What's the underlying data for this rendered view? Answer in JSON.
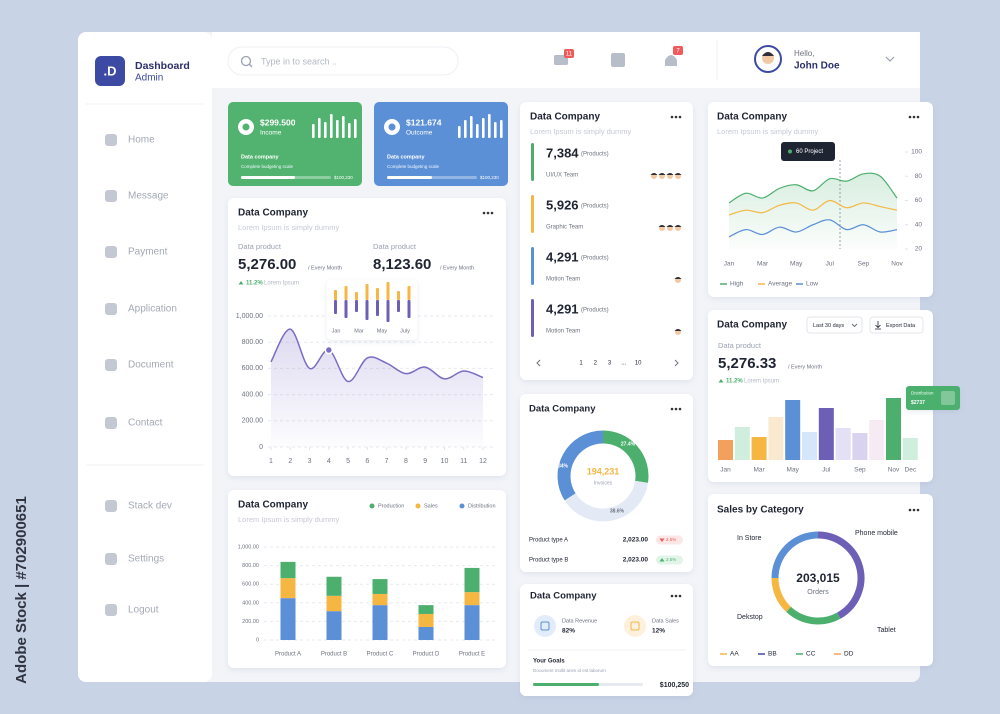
{
  "watermark": "Adobe Stock | #702900651",
  "sidebar": {
    "logo": ".D",
    "title": "Dashboard",
    "subtitle": "Admin",
    "nav": [
      "Home",
      "Message",
      "Payment",
      "Application",
      "Document",
      "Contact",
      "Stack dev",
      "Settings",
      "Logout"
    ]
  },
  "topbar": {
    "search": "Type in to search ..",
    "mail_badge": "11",
    "bell_badge": "7",
    "greeting": "Hello,",
    "user": "John Doe"
  },
  "summary_cards": [
    {
      "amount": "$299.500",
      "label": "Income",
      "name": "Data company",
      "note": "Complete budgeting scale",
      "total": "$100,230",
      "color": "#52b370",
      "spark": [
        14,
        20,
        16,
        24,
        18,
        22,
        15,
        19
      ],
      "progress": 60
    },
    {
      "amount": "$121.674",
      "label": "Outcome",
      "name": "Data company",
      "note": "Complete budgeting scale",
      "total": "$100,230",
      "color": "#5b8fd6",
      "spark": [
        12,
        18,
        22,
        14,
        20,
        24,
        16,
        18
      ],
      "progress": 50
    }
  ],
  "product_chart": {
    "title": "Data Company",
    "subtitle": "Lorem Ipsum is simply dummy",
    "kpis": [
      {
        "label": "Data product",
        "value": "5,276.00",
        "unit": "/ Every Month"
      },
      {
        "label": "Data product",
        "value": "8,123.60",
        "unit": "/ Every Month"
      }
    ],
    "change": "11.2%",
    "change_note": "Lorem Ipsum",
    "inset": {
      "months": [
        "Jan",
        "Mar",
        "May",
        "July"
      ],
      "up": [
        10,
        14,
        8,
        16,
        12,
        18,
        9,
        14
      ],
      "down": [
        14,
        18,
        12,
        20,
        16,
        22,
        12,
        18
      ]
    },
    "chart": {
      "type": "line",
      "x": [
        1,
        2,
        3,
        4,
        5,
        6,
        7,
        8,
        9,
        10,
        11,
        12
      ],
      "values": [
        650,
        900,
        600,
        740,
        500,
        680,
        640,
        560,
        610,
        520,
        580,
        530
      ],
      "xlim": [
        1,
        12
      ],
      "ylim": [
        0,
        1000
      ],
      "xticks": [
        1,
        2,
        3,
        4,
        5,
        6,
        7,
        8,
        9,
        10,
        11,
        12
      ],
      "yticks": [
        0,
        {
          "value": 200,
          "label": "200.00"
        },
        {
          "value": 400,
          "label": "400.00"
        },
        {
          "value": 600,
          "label": "600.00"
        },
        {
          "value": 800,
          "label": "800.00"
        },
        {
          "value": 1000,
          "label": "1,000.00"
        }
      ],
      "marker_index": 3,
      "color": "#7b6cc4",
      "grid": true
    }
  },
  "stack_chart": {
    "type": "bar",
    "stacked": true,
    "title": "Data Company",
    "subtitle": "Lorem Ipsum is simply dummy",
    "categories": [
      "Product A",
      "Product B",
      "Product C",
      "Product D",
      "Product E"
    ],
    "series": [
      {
        "name": "Production",
        "color": "#4caf6e",
        "values": [
          175,
          205,
          160,
          95,
          260
        ]
      },
      {
        "name": "Sales",
        "color": "#f5b642",
        "values": [
          215,
          165,
          120,
          140,
          140
        ]
      },
      {
        "name": "Distribution",
        "color": "#5b8fd6",
        "values": [
          450,
          310,
          375,
          140,
          375
        ]
      }
    ],
    "ylim": [
      0,
      1000
    ],
    "yticks": [
      0,
      {
        "value": 200,
        "label": "200.00"
      },
      {
        "value": 400,
        "label": "400.00"
      },
      {
        "value": 600,
        "label": "600.00"
      },
      {
        "value": 800,
        "label": "800.00"
      },
      {
        "value": 1000,
        "label": "1,000.00"
      }
    ],
    "grid": true
  },
  "teams": {
    "title": "Data Company",
    "subtitle": "Lorem Ipsum is simply dummy",
    "items": [
      {
        "value": "7,384",
        "unit": "(Products)",
        "team": "UI/UX Team",
        "color": "#4caf6e"
      },
      {
        "value": "5,926",
        "unit": "(Products)",
        "team": "Graphic Team",
        "color": "#f5b642"
      },
      {
        "value": "4,291",
        "unit": "(Products)",
        "team": "Motion Team",
        "color": "#5b8fd6"
      },
      {
        "value": "4,291",
        "unit": "(Products)",
        "team": "Motion Team",
        "color": "#6c5fb5"
      }
    ],
    "pages": [
      "1",
      "2",
      "3",
      "...",
      "10"
    ]
  },
  "invoices": {
    "type": "pie",
    "title": "Data Company",
    "total": "194,231",
    "total_label": "Invoices",
    "values": [
      27.4,
      38.6,
      34
    ],
    "value_labels": [
      "27.4%",
      "38.6%",
      "34%"
    ],
    "colors": [
      "#4caf6e",
      "#e3eaf5",
      "#5b8fd6"
    ],
    "rows": [
      {
        "name": "Product type A",
        "amount": "2,023.00",
        "change": "2.5%",
        "direction": "down"
      },
      {
        "name": "Product type B",
        "amount": "2,023.00",
        "change": "2.5%",
        "direction": "up"
      }
    ]
  },
  "goals": {
    "title": "Data Company",
    "metrics": [
      {
        "label": "Data Revenue",
        "value": "82%"
      },
      {
        "label": "Data Sales",
        "value": "12%"
      }
    ],
    "goal_title": "Your Goals",
    "goal_text": "Document mollit anim id est laborum",
    "amount": "$100,250",
    "progress": 60
  },
  "projects": {
    "type": "line",
    "title": "Data Company",
    "subtitle": "Lorem Ipsum is simply dummy",
    "tooltip": "60 Project",
    "categories": [
      "Jan",
      null,
      "Mar",
      null,
      "May",
      null,
      "Jul",
      null,
      "Sep",
      null,
      "Nov"
    ],
    "ylim": [
      20,
      100
    ],
    "yticks": [
      20,
      40,
      60,
      80,
      100
    ],
    "series": [
      {
        "name": "High",
        "color": "#4caf6e",
        "values": [
          58,
          66,
          62,
          70,
          73,
          68,
          78,
          76,
          82,
          80,
          62
        ]
      },
      {
        "name": "Average",
        "color": "#f5b642",
        "values": [
          48,
          52,
          50,
          56,
          58,
          52,
          60,
          54,
          58,
          55,
          52
        ]
      },
      {
        "name": "Low",
        "color": "#5b8fd6",
        "values": [
          30,
          36,
          32,
          38,
          34,
          40,
          44,
          36,
          40,
          34,
          36
        ]
      }
    ]
  },
  "distribution": {
    "type": "bar",
    "title": "Data Company",
    "period": "Last 30 days",
    "export": "Export Data",
    "kpi_label": "Data product",
    "kpi": "5,276.33",
    "unit": "/ Every Month",
    "change": "11.2%",
    "change_note": "Lorem Ipsum",
    "tooltip": {
      "label": "Distribution",
      "value": "$2737"
    },
    "categories": [
      "Jan",
      null,
      "Mar",
      null,
      "May",
      null,
      "Jul",
      null,
      "Sep",
      null,
      "Nov",
      "Dec"
    ],
    "values": [
      20,
      33,
      23,
      43,
      60,
      28,
      52,
      32,
      27,
      40,
      62,
      22
    ],
    "colors": [
      "#f2a05c",
      "#cfeedd",
      "#f5b642",
      "#fbe9cf",
      "#5b8fd6",
      "#d6e6fa",
      "#6c5fb5",
      "#e4e0f5",
      "#d9d3f0",
      "#f6ebf3",
      "#4caf6e",
      "#cfeedd"
    ]
  },
  "sales": {
    "type": "pie",
    "title": "Sales by Category",
    "total": "203,015",
    "total_label": "Orders",
    "categories": [
      "Phone mobile",
      "Tablet",
      "Dekstop",
      "In Store"
    ],
    "values": [
      42,
      20,
      13,
      25
    ],
    "colors": [
      "#6c5fb5",
      "#4caf6e",
      "#f5b642",
      "#5b8fd6"
    ],
    "legend": [
      "AA",
      "BB",
      "CC",
      "DD"
    ],
    "legend_colors": [
      "#f5b642",
      "#3d4aa3",
      "#4caf6e",
      "#f2a05c"
    ]
  }
}
